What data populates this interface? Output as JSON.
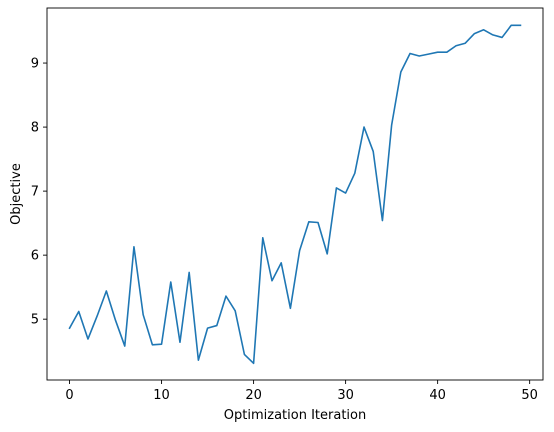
{
  "chart_data": {
    "type": "line",
    "title": "",
    "xlabel": "Optimization Iteration",
    "ylabel": "Objective",
    "xlim": [
      -2.45,
      51.45
    ],
    "ylim": [
      4.05,
      9.86
    ],
    "xticks": [
      0,
      10,
      20,
      30,
      40,
      50
    ],
    "yticks": [
      5,
      6,
      7,
      8,
      9
    ],
    "grid": false,
    "color": "#1f77b4",
    "series": [
      {
        "x": [
          0,
          1,
          2,
          3,
          4,
          5,
          6,
          7,
          8,
          9,
          10,
          11,
          12,
          13,
          14,
          15,
          16,
          17,
          18,
          19,
          20,
          21,
          22,
          23,
          24,
          25,
          26,
          27,
          28,
          29,
          30,
          31,
          32,
          33,
          34,
          35,
          36,
          37,
          38,
          39,
          40,
          41,
          42,
          43,
          44,
          45,
          46,
          47,
          48,
          49
        ],
        "values": [
          4.86,
          5.12,
          4.69,
          5.05,
          5.44,
          4.98,
          4.58,
          6.13,
          5.07,
          4.6,
          4.61,
          5.58,
          4.64,
          5.73,
          4.36,
          4.86,
          4.9,
          5.36,
          5.13,
          4.45,
          4.31,
          6.27,
          5.6,
          5.88,
          5.17,
          6.07,
          6.52,
          6.51,
          6.02,
          7.05,
          6.97,
          7.28,
          8.0,
          7.62,
          6.54,
          8.03,
          8.86,
          9.15,
          9.11,
          9.14,
          9.17,
          9.17,
          9.27,
          9.31,
          9.46,
          9.52,
          9.44,
          9.4,
          9.59,
          9.59
        ]
      }
    ]
  }
}
